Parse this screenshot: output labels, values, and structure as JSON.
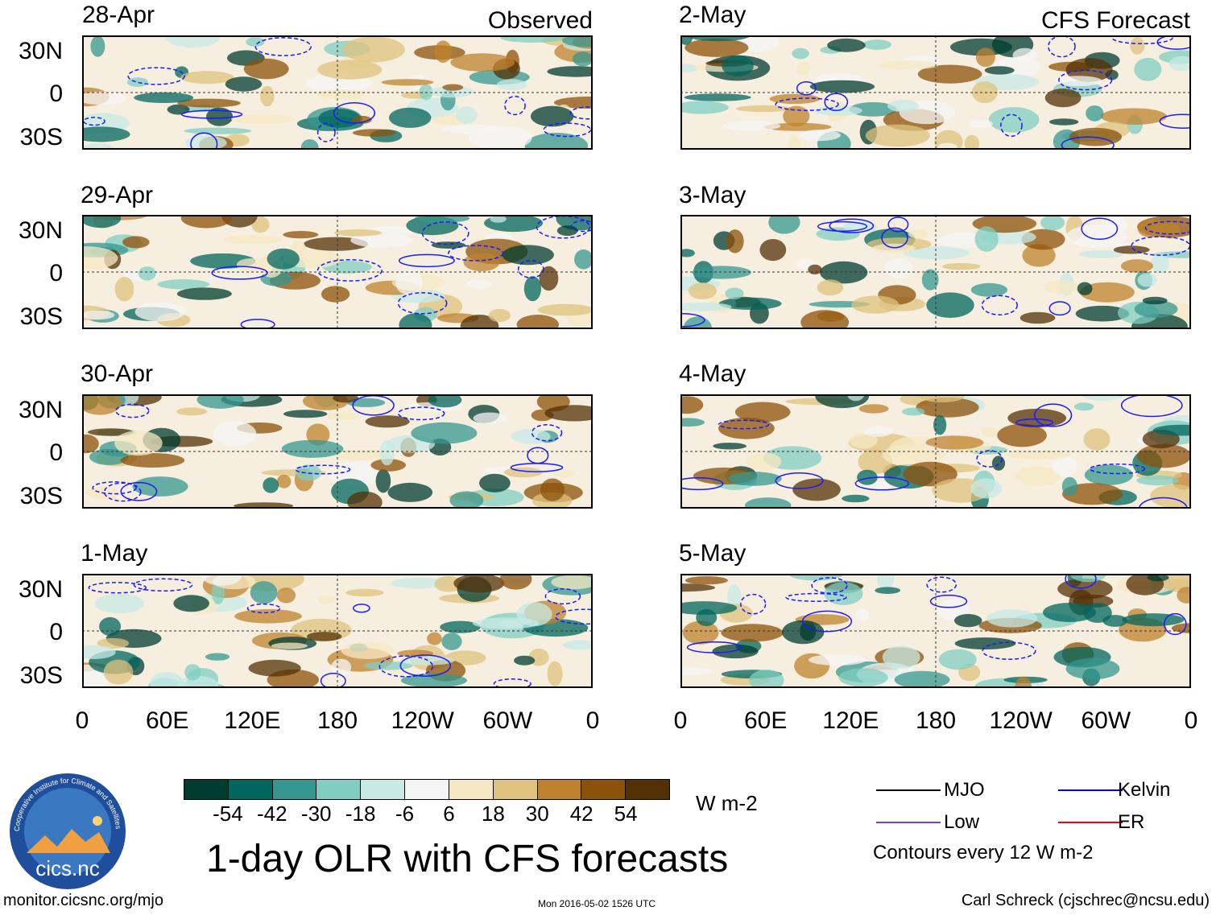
{
  "title": "1-day OLR with CFS forecasts",
  "left_column": {
    "tag": "Observed",
    "panels": [
      {
        "date": "28-Apr"
      },
      {
        "date": "29-Apr"
      },
      {
        "date": "30-Apr"
      },
      {
        "date": "1-May"
      }
    ]
  },
  "right_column": {
    "tag": "CFS Forecast",
    "panels": [
      {
        "date": "2-May"
      },
      {
        "date": "3-May"
      },
      {
        "date": "4-May"
      },
      {
        "date": "5-May"
      }
    ]
  },
  "lat_labels": [
    "30N",
    "0",
    "30S"
  ],
  "lon_labels": [
    "0",
    "60E",
    "120E",
    "180",
    "120W",
    "60W",
    "0"
  ],
  "colorbar": {
    "ticks": [
      "-54",
      "-42",
      "-30",
      "-18",
      "-6",
      "6",
      "18",
      "30",
      "42",
      "54"
    ],
    "colors": [
      "#003c30",
      "#01665e",
      "#35978f",
      "#80cdc1",
      "#c7eae5",
      "#f5f5f5",
      "#f6e8c3",
      "#dfc27d",
      "#bf812d",
      "#8c510a",
      "#543005"
    ],
    "units": "W m-2"
  },
  "legend": {
    "items": [
      {
        "label": "MJO",
        "color": "#000000"
      },
      {
        "label": "Kelvin",
        "color": "#0000ff"
      },
      {
        "label": "Low",
        "color": "#9933cc"
      },
      {
        "label": "ER",
        "color": "#ff0000"
      }
    ],
    "note": "Contours every 12 W m-2"
  },
  "logo": {
    "text": "cics.nc",
    "ring_text": "Cooperative Institute for Climate and Satellites"
  },
  "footer": {
    "url": "monitor.cicsnc.org/mjo",
    "timestamp": "Mon 2016-05-02 1526 UTC",
    "author": "Carl Schreck (cjschrec@ncsu.edu)"
  }
}
